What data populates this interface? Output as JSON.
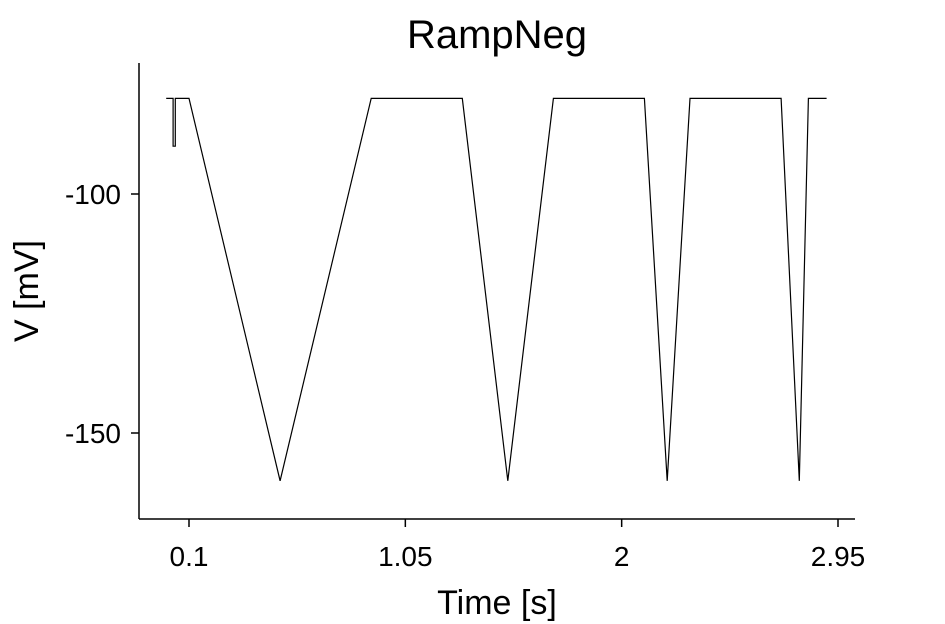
{
  "chart_data": {
    "type": "line",
    "title": "RampNeg",
    "xlabel": "Time [s]",
    "ylabel": "V [mV]",
    "xlim": [
      0.0,
      2.95
    ],
    "ylim": [
      -168,
      -75
    ],
    "xticks": [
      0.1,
      1.05,
      2,
      2.95
    ],
    "xtick_labels": [
      "0.1",
      "1.05",
      "2",
      "2.95"
    ],
    "yticks": [
      -100,
      -150
    ],
    "ytick_labels": [
      "-100",
      "-150"
    ],
    "grid": false,
    "legend": "none",
    "series": [
      {
        "color": "#000000",
        "x": [
          0.0,
          0.03,
          0.03,
          0.04,
          0.04,
          0.1,
          0.5,
          0.9,
          1.3,
          1.5,
          1.7,
          2.1,
          2.2,
          2.3,
          2.7,
          2.78,
          2.82,
          2.9
        ],
        "y": [
          -80,
          -80,
          -90,
          -90,
          -80,
          -80,
          -160,
          -80,
          -80,
          -160,
          -80,
          -80,
          -160,
          -80,
          -80,
          -160,
          -80,
          -80
        ]
      }
    ]
  }
}
